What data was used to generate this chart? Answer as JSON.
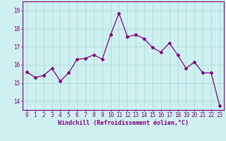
{
  "x": [
    0,
    1,
    2,
    3,
    4,
    5,
    6,
    7,
    8,
    9,
    10,
    11,
    12,
    13,
    14,
    15,
    16,
    17,
    18,
    19,
    20,
    21,
    22,
    23
  ],
  "y": [
    15.6,
    15.3,
    15.4,
    15.8,
    15.1,
    15.55,
    16.3,
    16.35,
    16.55,
    16.3,
    17.65,
    18.85,
    17.55,
    17.65,
    17.45,
    16.95,
    16.7,
    17.2,
    16.55,
    15.8,
    16.15,
    15.55,
    15.55,
    13.75
  ],
  "line_color": "#800080",
  "marker": "D",
  "marker_size": 2.0,
  "line_width": 0.9,
  "xlabel": "Windchill (Refroidissement éolien,°C)",
  "xlabel_fontsize": 6.0,
  "bg_color": "#cff0f0",
  "grid_color": "#a8dede",
  "xlim": [
    -0.5,
    23.5
  ],
  "ylim": [
    13.5,
    19.5
  ],
  "yticks": [
    14,
    15,
    16,
    17,
    18,
    19
  ],
  "xticks": [
    0,
    1,
    2,
    3,
    4,
    5,
    6,
    7,
    8,
    9,
    10,
    11,
    12,
    13,
    14,
    15,
    16,
    17,
    18,
    19,
    20,
    21,
    22,
    23
  ],
  "tick_fontsize": 5.5,
  "spine_color": "#800080"
}
